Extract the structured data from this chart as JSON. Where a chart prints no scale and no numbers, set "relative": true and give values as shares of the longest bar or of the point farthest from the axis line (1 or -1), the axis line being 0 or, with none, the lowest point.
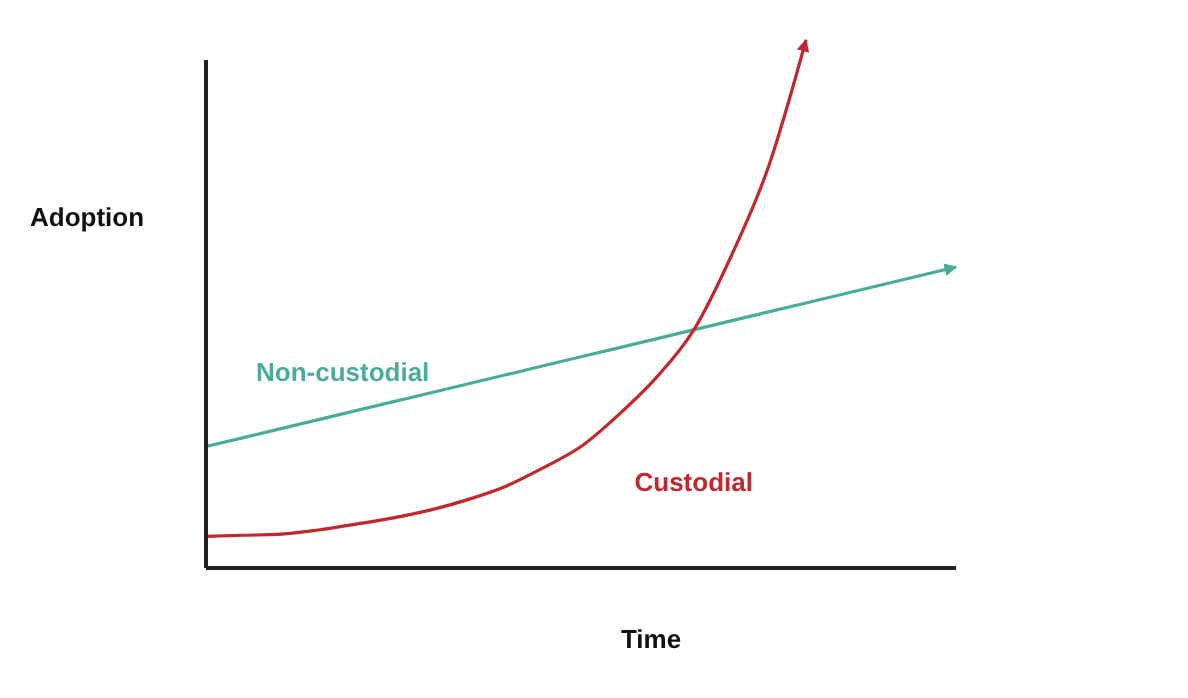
{
  "chart_data": {
    "type": "line",
    "relative": true,
    "xlabel": "Time",
    "ylabel": "Adoption",
    "marker": "none",
    "line_style": "solid",
    "categories": [
      null,
      null,
      null,
      null,
      null,
      null,
      null,
      null,
      null,
      null,
      null,
      null,
      null,
      null,
      null,
      null,
      null,
      null,
      null,
      null,
      null
    ],
    "series": [
      {
        "name": "Non-custodial",
        "color": "#4aad9a",
        "values": [
          0.23,
          0.247,
          0.264,
          0.281,
          0.298,
          0.315,
          0.332,
          0.349,
          0.366,
          0.383,
          0.4,
          0.417,
          0.434,
          0.451,
          0.468,
          0.485,
          0.502,
          0.519,
          0.536,
          0.553,
          0.57
        ]
      },
      {
        "name": "Custodial",
        "color": "#c1272d",
        "values": [
          0.06,
          0.062,
          0.064,
          0.072,
          0.083,
          0.095,
          0.11,
          0.13,
          0.155,
          0.19,
          0.23,
          0.29,
          0.36,
          0.45,
          0.59,
          0.76,
          1.0,
          null,
          null,
          null,
          null
        ]
      }
    ]
  }
}
